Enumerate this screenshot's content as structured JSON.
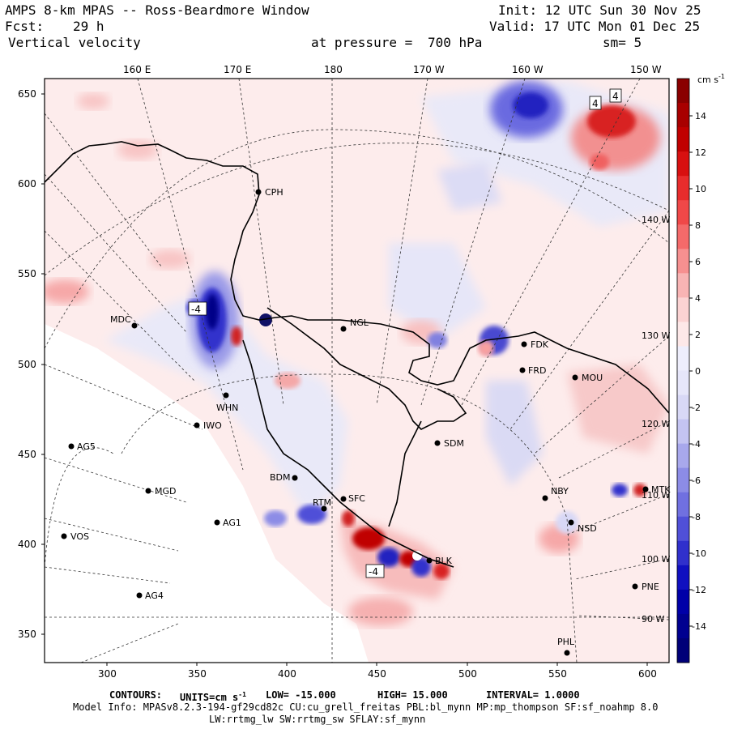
{
  "header": {
    "title": "AMPS 8-km MPAS -- Ross-Beardmore Window",
    "fcst_label": "Fcst:",
    "fcst_value": "29 h",
    "field": "Vertical velocity",
    "pressure_label": "at pressure =",
    "pressure_value": "700 hPa",
    "init": "Init: 12 UTC Sun 30 Nov 25",
    "valid": "Valid: 17 UTC Mon 01 Dec 25",
    "smoothing": "sm= 5"
  },
  "map": {
    "longitude_labels": [
      "160 E",
      "170 E",
      "180",
      "170 W",
      "160 W",
      "150 W"
    ],
    "inner_longitude_labels": [
      "140 W",
      "130 W",
      "120 W",
      "110 W",
      "100 W",
      "90 W"
    ],
    "y_ticks": [
      650,
      600,
      550,
      500,
      450,
      400,
      350
    ],
    "x_ticks": [
      300,
      350,
      400,
      450,
      500,
      550,
      600
    ],
    "stations": [
      {
        "id": "CPH"
      },
      {
        "id": "NGL"
      },
      {
        "id": "MDC"
      },
      {
        "id": "WHN"
      },
      {
        "id": "IWO"
      },
      {
        "id": "AG5"
      },
      {
        "id": "MGD"
      },
      {
        "id": "AG1"
      },
      {
        "id": "VOS"
      },
      {
        "id": "AG4"
      },
      {
        "id": "BDM"
      },
      {
        "id": "SFC"
      },
      {
        "id": "RTM"
      },
      {
        "id": "SDM"
      },
      {
        "id": "FDK"
      },
      {
        "id": "FRD"
      },
      {
        "id": "MOU"
      },
      {
        "id": "NBY"
      },
      {
        "id": "NSD"
      },
      {
        "id": "MTK"
      },
      {
        "id": "PNE"
      },
      {
        "id": "PHL"
      },
      {
        "id": "BLK"
      }
    ],
    "contour_labels": [
      "-4",
      "4",
      "4",
      "-4"
    ],
    "features": {
      "max_updraft_cms": 15,
      "max_downdraft_cms": -15
    }
  },
  "colorbar": {
    "units": "cm s",
    "units_exp": "-1",
    "levels": [
      14,
      12,
      10,
      8,
      6,
      4,
      2,
      0,
      -2,
      -4,
      -6,
      -8,
      -10,
      -12,
      -14
    ],
    "colors": [
      "#8a0000",
      "#a80000",
      "#c00000",
      "#d81010",
      "#e82c2c",
      "#f04848",
      "#f46a6a",
      "#f69090",
      "#f8b4b4",
      "#fbd3d3",
      "#fde8e8",
      "#eeeefc",
      "#e6e6fa",
      "#d8d8f6",
      "#c4c4f2",
      "#a8a8ec",
      "#8c8ce6",
      "#7070e0",
      "#5050d8",
      "#3030cc",
      "#1010c0",
      "#0000a8",
      "#000090",
      "#000078"
    ]
  },
  "footer": {
    "contours_label": "CONTOURS:",
    "units_label": "UNITS=cm s",
    "units_exp": "-1",
    "low_label": "LOW=",
    "low": "-15.000",
    "high_label": "HIGH=",
    "high": "15.000",
    "interval_label": "INTERVAL=",
    "interval": "1.0000",
    "model_info": "Model Info: MPASv8.2.3-194-gf29cd82c CU:cu_grell_freitas PBL:bl_mynn MP:mp_thompson SF:sf_noahmp 8.0",
    "model_info2": "LW:rrtmg_lw SW:rrtmg_sw SFLAY:sf_mynn"
  }
}
